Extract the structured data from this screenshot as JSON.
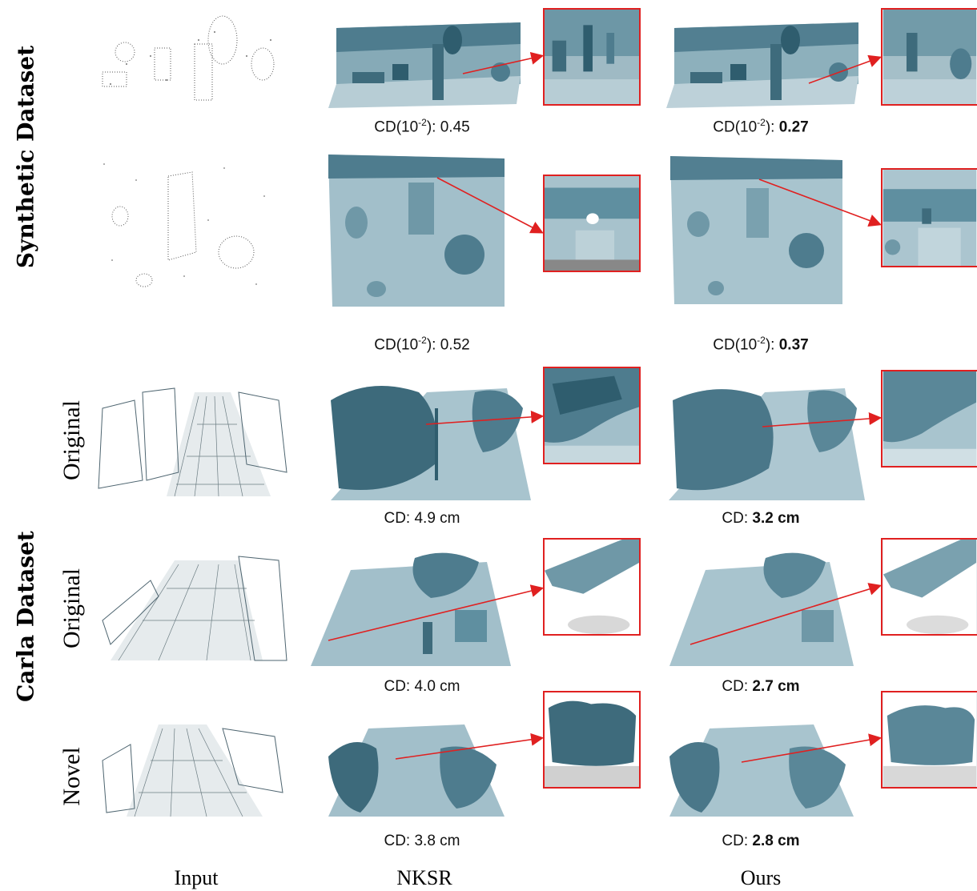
{
  "groups": {
    "synthetic": "Synthetic Dataset",
    "carla": "Carla Dataset"
  },
  "row_labels": {
    "row3": "Original",
    "row4": "Original",
    "row5": "Novel"
  },
  "columns": {
    "input": "Input",
    "nksr": "NKSR",
    "ours": "Ours"
  },
  "metrics": {
    "r1_nksr": {
      "prefix": "CD(10",
      "exp": "-2",
      "suffix": "): ",
      "value": "0.45"
    },
    "r1_ours": {
      "prefix": "CD(10",
      "exp": "-2",
      "suffix": "): ",
      "value": "0.27"
    },
    "r2_nksr": {
      "prefix": "CD(10",
      "exp": "-2",
      "suffix": "): ",
      "value": "0.52"
    },
    "r2_ours": {
      "prefix": "CD(10",
      "exp": "-2",
      "suffix": "): ",
      "value": "0.37"
    },
    "r3_nksr": {
      "prefix": "CD: ",
      "value": "4.9 cm"
    },
    "r3_ours": {
      "prefix": "CD: ",
      "value": "3.2 cm"
    },
    "r4_nksr": {
      "prefix": "CD: ",
      "value": "4.0 cm"
    },
    "r4_ours": {
      "prefix": "CD: ",
      "value": "2.7 cm"
    },
    "r5_nksr": {
      "prefix": "CD: ",
      "value": "3.8 cm"
    },
    "r5_ours": {
      "prefix": "CD: ",
      "value": "2.8 cm"
    }
  },
  "colors": {
    "mesh": "#5f8fa0",
    "mesh_dark": "#2f5d6e",
    "mesh_light": "#a9c6d0",
    "arrow": "#e02020",
    "points": "#555555"
  }
}
